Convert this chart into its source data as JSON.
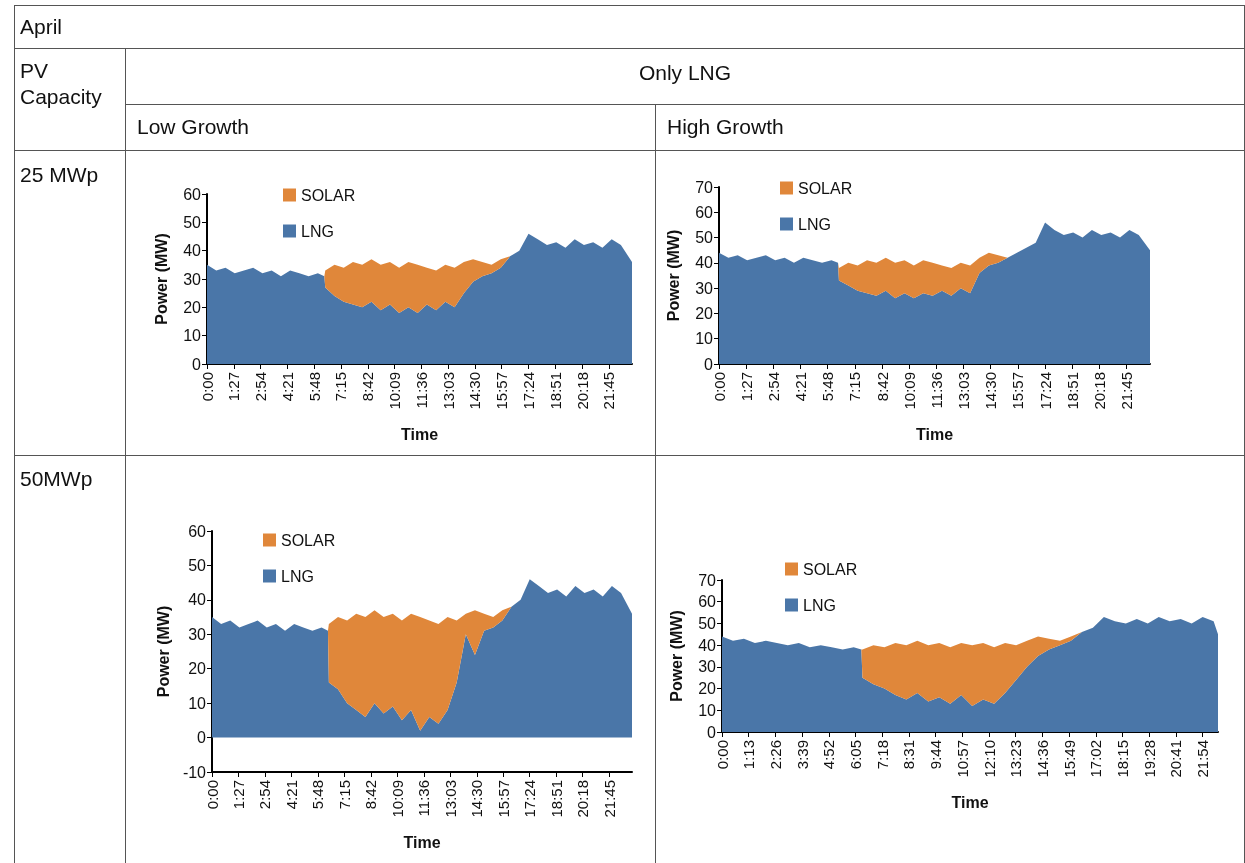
{
  "chart_data": [
    {
      "type": "area",
      "stacked": true,
      "annotations": [
        "April",
        "PV Capacity",
        "Only LNG",
        "Low Growth",
        "25 MWp"
      ],
      "xlabel": "Time",
      "ylabel": "Power (MW)",
      "legend": "top left",
      "marker": "none",
      "x": [
        0,
        0.5,
        1,
        1.5,
        2,
        2.5,
        3,
        3.5,
        4,
        4.5,
        5,
        5.5,
        6,
        6.35,
        6.4,
        6.9,
        7.4,
        7.9,
        8.4,
        8.9,
        9.4,
        9.9,
        10.4,
        10.9,
        11.4,
        11.9,
        12.4,
        12.9,
        13.4,
        13.9,
        14.4,
        14.9,
        15.4,
        15.9,
        16.4,
        16.9,
        17.4,
        17.9,
        18.4,
        18.9,
        19.4,
        19.9,
        20.4,
        20.9,
        21.4,
        21.9,
        22.4,
        23
      ],
      "xlim": [
        0,
        23
      ],
      "xticks": [
        {
          "value": 0,
          "label": "0:00"
        },
        {
          "value": 1.45,
          "label": "1:27"
        },
        {
          "value": 2.9,
          "label": "2:54"
        },
        {
          "value": 4.35,
          "label": "4:21"
        },
        {
          "value": 5.8,
          "label": "5:48"
        },
        {
          "value": 7.25,
          "label": "7:15"
        },
        {
          "value": 8.7,
          "label": "8:42"
        },
        {
          "value": 10.15,
          "label": "10:09"
        },
        {
          "value": 11.6,
          "label": "11:36"
        },
        {
          "value": 13.05,
          "label": "13:03"
        },
        {
          "value": 14.5,
          "label": "14:30"
        },
        {
          "value": 15.95,
          "label": "15:57"
        },
        {
          "value": 17.4,
          "label": "17:24"
        },
        {
          "value": 18.85,
          "label": "18:51"
        },
        {
          "value": 20.3,
          "label": "20:18"
        },
        {
          "value": 21.75,
          "label": "21:45"
        }
      ],
      "ylim": [
        0,
        60
      ],
      "yticks": [
        0,
        10,
        20,
        30,
        40,
        50,
        60
      ],
      "series": [
        {
          "name": "LNG",
          "color": "#4a76a8",
          "values": [
            35,
            33,
            34,
            32,
            33,
            34,
            32,
            33,
            31,
            33,
            32,
            31,
            32,
            31,
            27,
            24,
            22,
            21,
            20,
            22,
            19,
            21,
            18,
            20,
            18,
            21,
            19,
            22,
            20,
            25,
            29,
            31,
            32,
            34,
            38,
            40,
            46,
            44,
            42,
            43,
            41,
            44,
            42,
            43,
            41,
            44,
            42,
            36
          ]
        },
        {
          "name": "SOLAR",
          "color": "#e0873a",
          "values": [
            0,
            0,
            0,
            0,
            0,
            0,
            0,
            0,
            0,
            0,
            0,
            0,
            0,
            0,
            6,
            11,
            12,
            15,
            15,
            15,
            16,
            15,
            16,
            16,
            17,
            13,
            14,
            13,
            14,
            11,
            8,
            5,
            3,
            3,
            0,
            0,
            0,
            0,
            0,
            0,
            0,
            0,
            0,
            0,
            0,
            0,
            0,
            0
          ]
        }
      ]
    },
    {
      "type": "area",
      "stacked": true,
      "annotations": [
        "High Growth"
      ],
      "xlabel": "Time",
      "ylabel": "Power (MW)",
      "legend": "top left",
      "marker": "none",
      "x": [
        0,
        0.5,
        1,
        1.5,
        2,
        2.5,
        3,
        3.5,
        4,
        4.5,
        5,
        5.5,
        6,
        6.35,
        6.4,
        6.9,
        7.4,
        7.9,
        8.4,
        8.9,
        9.4,
        9.9,
        10.4,
        10.9,
        11.4,
        11.9,
        12.4,
        12.9,
        13.4,
        13.9,
        14.4,
        14.9,
        15.4,
        15.9,
        16.4,
        16.9,
        17.4,
        17.9,
        18.4,
        18.9,
        19.4,
        19.9,
        20.4,
        20.9,
        21.4,
        21.9,
        22.4,
        23
      ],
      "xlim": [
        0,
        23
      ],
      "xticks": [
        {
          "value": 0,
          "label": "0:00"
        },
        {
          "value": 1.45,
          "label": "1:27"
        },
        {
          "value": 2.9,
          "label": "2:54"
        },
        {
          "value": 4.35,
          "label": "4:21"
        },
        {
          "value": 5.8,
          "label": "5:48"
        },
        {
          "value": 7.25,
          "label": "7:15"
        },
        {
          "value": 8.7,
          "label": "8:42"
        },
        {
          "value": 10.15,
          "label": "10:09"
        },
        {
          "value": 11.6,
          "label": "11:36"
        },
        {
          "value": 13.05,
          "label": "13:03"
        },
        {
          "value": 14.5,
          "label": "14:30"
        },
        {
          "value": 15.95,
          "label": "15:57"
        },
        {
          "value": 17.4,
          "label": "17:24"
        },
        {
          "value": 18.85,
          "label": "18:51"
        },
        {
          "value": 20.3,
          "label": "20:18"
        },
        {
          "value": 21.75,
          "label": "21:45"
        }
      ],
      "ylim": [
        0,
        70
      ],
      "yticks": [
        0,
        10,
        20,
        30,
        40,
        50,
        60,
        70
      ],
      "series": [
        {
          "name": "LNG",
          "color": "#4a76a8",
          "values": [
            44,
            42,
            43,
            41,
            42,
            43,
            41,
            42,
            40,
            42,
            41,
            40,
            41,
            40,
            33,
            31,
            29,
            28,
            27,
            29,
            26,
            28,
            26,
            28,
            27,
            29,
            27,
            30,
            28,
            36,
            39,
            40,
            42,
            44,
            46,
            48,
            56,
            53,
            51,
            52,
            50,
            53,
            51,
            52,
            50,
            53,
            51,
            45
          ]
        },
        {
          "name": "SOLAR",
          "color": "#e0873a",
          "values": [
            0,
            0,
            0,
            0,
            0,
            0,
            0,
            0,
            0,
            0,
            0,
            0,
            0,
            0,
            5,
            9,
            10,
            13,
            13,
            13,
            14,
            13,
            13,
            13,
            13,
            10,
            11,
            10,
            11,
            6,
            5,
            3,
            0,
            0,
            0,
            0,
            0,
            0,
            0,
            0,
            0,
            0,
            0,
            0,
            0,
            0,
            0,
            0
          ]
        }
      ]
    },
    {
      "type": "area",
      "stacked": true,
      "annotations": [
        "50MWp"
      ],
      "xlabel": "Time",
      "ylabel": "Power (MW)",
      "legend": "top left",
      "marker": "none",
      "x": [
        0,
        0.5,
        1,
        1.5,
        2,
        2.5,
        3,
        3.5,
        4,
        4.5,
        5,
        5.5,
        6,
        6.35,
        6.4,
        6.9,
        7.4,
        7.9,
        8.4,
        8.9,
        9.4,
        9.9,
        10.4,
        10.9,
        11.4,
        11.9,
        12.4,
        12.9,
        13.4,
        13.9,
        14.4,
        14.9,
        15.4,
        15.9,
        16.4,
        16.9,
        17.4,
        17.9,
        18.4,
        18.9,
        19.4,
        19.9,
        20.4,
        20.9,
        21.4,
        21.9,
        22.4,
        23
      ],
      "xlim": [
        0,
        23
      ],
      "xticks": [
        {
          "value": 0,
          "label": "0:00"
        },
        {
          "value": 1.45,
          "label": "1:27"
        },
        {
          "value": 2.9,
          "label": "2:54"
        },
        {
          "value": 4.35,
          "label": "4:21"
        },
        {
          "value": 5.8,
          "label": "5:48"
        },
        {
          "value": 7.25,
          "label": "7:15"
        },
        {
          "value": 8.7,
          "label": "8:42"
        },
        {
          "value": 10.15,
          "label": "10:09"
        },
        {
          "value": 11.6,
          "label": "11:36"
        },
        {
          "value": 13.05,
          "label": "13:03"
        },
        {
          "value": 14.5,
          "label": "14:30"
        },
        {
          "value": 15.95,
          "label": "15:57"
        },
        {
          "value": 17.4,
          "label": "17:24"
        },
        {
          "value": 18.85,
          "label": "18:51"
        },
        {
          "value": 20.3,
          "label": "20:18"
        },
        {
          "value": 21.75,
          "label": "21:45"
        }
      ],
      "ylim": [
        -10,
        60
      ],
      "yticks": [
        -10,
        0,
        10,
        20,
        30,
        40,
        50,
        60
      ],
      "series": [
        {
          "name": "LNG",
          "color": "#4a76a8",
          "values": [
            35,
            33,
            34,
            32,
            33,
            34,
            32,
            33,
            31,
            33,
            32,
            31,
            32,
            31,
            16,
            14,
            10,
            8,
            6,
            10,
            7,
            9,
            5,
            8,
            2,
            6,
            4,
            8,
            16,
            30,
            24,
            31,
            32,
            34,
            38,
            40,
            46,
            44,
            42,
            43,
            41,
            44,
            42,
            43,
            41,
            44,
            42,
            36
          ]
        },
        {
          "name": "SOLAR",
          "color": "#e0873a",
          "values": [
            0,
            0,
            0,
            0,
            0,
            0,
            0,
            0,
            0,
            0,
            0,
            0,
            0,
            0,
            17,
            21,
            24,
            28,
            29,
            27,
            28,
            27,
            29,
            28,
            33,
            28,
            29,
            27,
            18,
            6,
            13,
            5,
            3,
            3,
            0,
            0,
            0,
            0,
            0,
            0,
            0,
            0,
            0,
            0,
            0,
            0,
            0,
            0
          ]
        }
      ]
    },
    {
      "type": "area",
      "stacked": true,
      "xlabel": "Time",
      "ylabel": "Power (MW)",
      "legend": "top left",
      "marker": "none",
      "x": [
        0,
        0.5,
        1,
        1.5,
        2,
        2.5,
        3,
        3.5,
        4,
        4.5,
        5,
        5.5,
        6,
        6.35,
        6.4,
        6.9,
        7.4,
        7.9,
        8.4,
        8.9,
        9.4,
        9.9,
        10.4,
        10.9,
        11.4,
        11.9,
        12.4,
        12.9,
        13.4,
        13.9,
        14.4,
        14.9,
        15.4,
        15.9,
        16.4,
        16.9,
        17.4,
        17.9,
        18.4,
        18.9,
        19.4,
        19.9,
        20.4,
        20.9,
        21.4,
        21.9,
        22.4,
        22.6
      ],
      "xlim": [
        0,
        22.6
      ],
      "xticks": [
        {
          "value": 0,
          "label": "0:00"
        },
        {
          "value": 1.2167,
          "label": "1:13"
        },
        {
          "value": 2.4333,
          "label": "2:26"
        },
        {
          "value": 3.65,
          "label": "3:39"
        },
        {
          "value": 4.8667,
          "label": "4:52"
        },
        {
          "value": 6.0833,
          "label": "6:05"
        },
        {
          "value": 7.3,
          "label": "7:18"
        },
        {
          "value": 8.5167,
          "label": "8:31"
        },
        {
          "value": 9.7333,
          "label": "9:44"
        },
        {
          "value": 10.95,
          "label": "10:57"
        },
        {
          "value": 12.1667,
          "label": "12:10"
        },
        {
          "value": 13.3833,
          "label": "13:23"
        },
        {
          "value": 14.6,
          "label": "14:36"
        },
        {
          "value": 15.8167,
          "label": "15:49"
        },
        {
          "value": 17.0333,
          "label": "17:02"
        },
        {
          "value": 18.25,
          "label": "18:15"
        },
        {
          "value": 19.4667,
          "label": "19:28"
        },
        {
          "value": 20.6833,
          "label": "20:41"
        },
        {
          "value": 21.9,
          "label": "21:54"
        }
      ],
      "ylim": [
        0,
        70
      ],
      "yticks": [
        0,
        10,
        20,
        30,
        40,
        50,
        60,
        70
      ],
      "series": [
        {
          "name": "LNG",
          "color": "#4a76a8",
          "values": [
            44,
            42,
            43,
            41,
            42,
            41,
            40,
            41,
            39,
            40,
            39,
            38,
            39,
            38,
            25,
            22,
            20,
            17,
            15,
            18,
            14,
            16,
            13,
            17,
            12,
            15,
            13,
            18,
            24,
            30,
            35,
            38,
            40,
            42,
            46,
            48,
            53,
            51,
            50,
            52,
            50,
            53,
            51,
            52,
            50,
            53,
            51,
            45
          ]
        },
        {
          "name": "SOLAR",
          "color": "#e0873a",
          "values": [
            0,
            0,
            0,
            0,
            0,
            0,
            0,
            0,
            0,
            0,
            0,
            0,
            0,
            0,
            13,
            18,
            19,
            24,
            25,
            24,
            26,
            25,
            26,
            24,
            28,
            26,
            26,
            23,
            16,
            12,
            9,
            5,
            2,
            2,
            0,
            0,
            0,
            0,
            0,
            0,
            0,
            0,
            0,
            0,
            0,
            0,
            0,
            0
          ]
        }
      ]
    }
  ]
}
